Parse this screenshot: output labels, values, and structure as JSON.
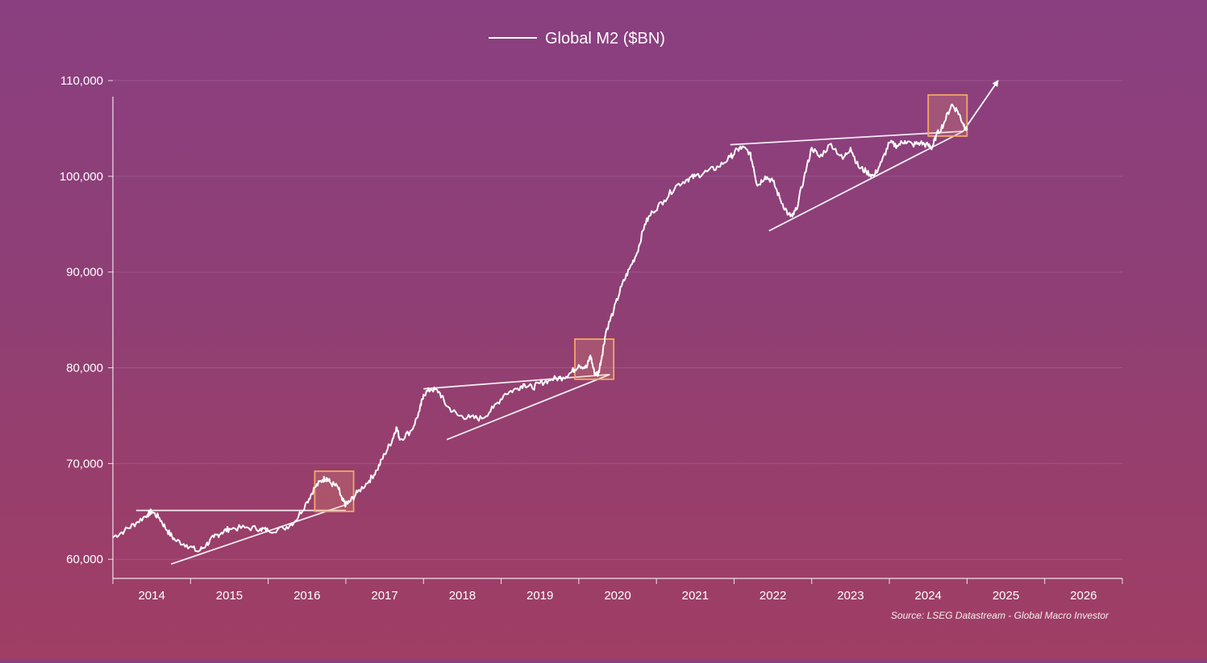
{
  "chart_data": {
    "type": "line",
    "legend": {
      "label": "Global M2 ($BN)",
      "placement": "top-center"
    },
    "source": "Source: LSEG Datastream - Global Macro Investor",
    "x_ticks": [
      "2014",
      "2015",
      "2016",
      "2017",
      "2018",
      "2019",
      "2020",
      "2021",
      "2022",
      "2023",
      "2024",
      "2025",
      "2026"
    ],
    "y_ticks": [
      {
        "value": 60000,
        "label": "60,000"
      },
      {
        "value": 70000,
        "label": "70,000"
      },
      {
        "value": 80000,
        "label": "80,000"
      },
      {
        "value": 90000,
        "label": "90,000"
      },
      {
        "value": 100000,
        "label": "100,000"
      },
      {
        "value": 110000,
        "label": "110,000"
      }
    ],
    "xlim": [
      2013.5,
      2026.5
    ],
    "ylim": [
      58000,
      110000
    ],
    "grid": true,
    "series": [
      {
        "name": "Global M2 ($BN)",
        "color": "#ffffff",
        "points": [
          [
            2013.5,
            62300
          ],
          [
            2013.65,
            63000
          ],
          [
            2013.8,
            63800
          ],
          [
            2013.95,
            64700
          ],
          [
            2014.0,
            65000
          ],
          [
            2014.1,
            64300
          ],
          [
            2014.2,
            63000
          ],
          [
            2014.3,
            62000
          ],
          [
            2014.45,
            61500
          ],
          [
            2014.6,
            60800
          ],
          [
            2014.7,
            61500
          ],
          [
            2014.8,
            62300
          ],
          [
            2014.9,
            62800
          ],
          [
            2015.0,
            63200
          ],
          [
            2015.2,
            63300
          ],
          [
            2015.4,
            63200
          ],
          [
            2015.5,
            63000
          ],
          [
            2015.7,
            63200
          ],
          [
            2015.85,
            64000
          ],
          [
            2016.0,
            66000
          ],
          [
            2016.1,
            67500
          ],
          [
            2016.2,
            68300
          ],
          [
            2016.25,
            68500
          ],
          [
            2016.3,
            68000
          ],
          [
            2016.4,
            67500
          ],
          [
            2016.45,
            66200
          ],
          [
            2016.5,
            65700
          ],
          [
            2016.55,
            66000
          ],
          [
            2016.65,
            67000
          ],
          [
            2016.8,
            68200
          ],
          [
            2016.9,
            69300
          ],
          [
            2017.0,
            71000
          ],
          [
            2017.1,
            72500
          ],
          [
            2017.15,
            73800
          ],
          [
            2017.2,
            72500
          ],
          [
            2017.35,
            73500
          ],
          [
            2017.45,
            75500
          ],
          [
            2017.5,
            77200
          ],
          [
            2017.6,
            77800
          ],
          [
            2017.7,
            77500
          ],
          [
            2017.8,
            76000
          ],
          [
            2017.95,
            75000
          ],
          [
            2018.1,
            74800
          ],
          [
            2018.25,
            74700
          ],
          [
            2018.4,
            75800
          ],
          [
            2018.55,
            77300
          ],
          [
            2018.7,
            77800
          ],
          [
            2018.8,
            78300
          ],
          [
            2018.9,
            77900
          ],
          [
            2019.0,
            78400
          ],
          [
            2019.15,
            78800
          ],
          [
            2019.3,
            79000
          ],
          [
            2019.4,
            79500
          ],
          [
            2019.5,
            80300
          ],
          [
            2019.6,
            80000
          ],
          [
            2019.65,
            81300
          ],
          [
            2019.7,
            79500
          ],
          [
            2019.75,
            79300
          ],
          [
            2019.8,
            81300
          ],
          [
            2019.85,
            83800
          ],
          [
            2019.95,
            86000
          ],
          [
            2020.05,
            88500
          ],
          [
            2020.15,
            90300
          ],
          [
            2020.25,
            92000
          ],
          [
            2020.35,
            95000
          ],
          [
            2020.45,
            96300
          ],
          [
            2020.6,
            97500
          ],
          [
            2020.75,
            99000
          ],
          [
            2020.9,
            99700
          ],
          [
            2021.0,
            100000
          ],
          [
            2021.15,
            100500
          ],
          [
            2021.3,
            101000
          ],
          [
            2021.45,
            102000
          ],
          [
            2021.55,
            102800
          ],
          [
            2021.6,
            103000
          ],
          [
            2021.7,
            102500
          ],
          [
            2021.75,
            101000
          ],
          [
            2021.8,
            99000
          ],
          [
            2021.9,
            100000
          ],
          [
            2022.0,
            99500
          ],
          [
            2022.1,
            97500
          ],
          [
            2022.2,
            96000
          ],
          [
            2022.25,
            95800
          ],
          [
            2022.3,
            96500
          ],
          [
            2022.4,
            99800
          ],
          [
            2022.5,
            103000
          ],
          [
            2022.6,
            102000
          ],
          [
            2022.75,
            103400
          ],
          [
            2022.9,
            101800
          ],
          [
            2023.0,
            103000
          ],
          [
            2023.1,
            101000
          ],
          [
            2023.2,
            100500
          ],
          [
            2023.3,
            100000
          ],
          [
            2023.4,
            101500
          ],
          [
            2023.5,
            103500
          ],
          [
            2023.6,
            103200
          ],
          [
            2023.7,
            103700
          ],
          [
            2023.8,
            103300
          ],
          [
            2023.9,
            103500
          ],
          [
            2024.0,
            103200
          ],
          [
            2024.05,
            103000
          ],
          [
            2024.1,
            104200
          ],
          [
            2024.2,
            105500
          ],
          [
            2024.3,
            107500
          ],
          [
            2024.38,
            106800
          ],
          [
            2024.45,
            105500
          ],
          [
            2024.5,
            104800
          ]
        ]
      }
    ],
    "trendlines": [
      {
        "from": [
          2013.8,
          65100
        ],
        "to": [
          2016.5,
          65100
        ]
      },
      {
        "from": [
          2014.25,
          59500
        ],
        "to": [
          2016.5,
          65700
        ]
      },
      {
        "from": [
          2017.5,
          77800
        ],
        "to": [
          2019.9,
          79300
        ]
      },
      {
        "from": [
          2017.8,
          72500
        ],
        "to": [
          2019.9,
          79300
        ]
      },
      {
        "from": [
          2021.45,
          103300
        ],
        "to": [
          2024.45,
          104700
        ]
      },
      {
        "from": [
          2021.95,
          94300
        ],
        "to": [
          2024.45,
          104700
        ]
      }
    ],
    "trend_arrow": {
      "from": [
        2024.45,
        104700
      ],
      "to": [
        2024.9,
        110000
      ]
    },
    "highlight_boxes": [
      {
        "x0": 2016.1,
        "x1": 2016.6,
        "y0": 65000,
        "y1": 69200
      },
      {
        "x0": 2019.45,
        "x1": 2019.95,
        "y0": 78800,
        "y1": 83000
      },
      {
        "x0": 2024.0,
        "x1": 2024.5,
        "y0": 104200,
        "y1": 108500
      }
    ]
  }
}
